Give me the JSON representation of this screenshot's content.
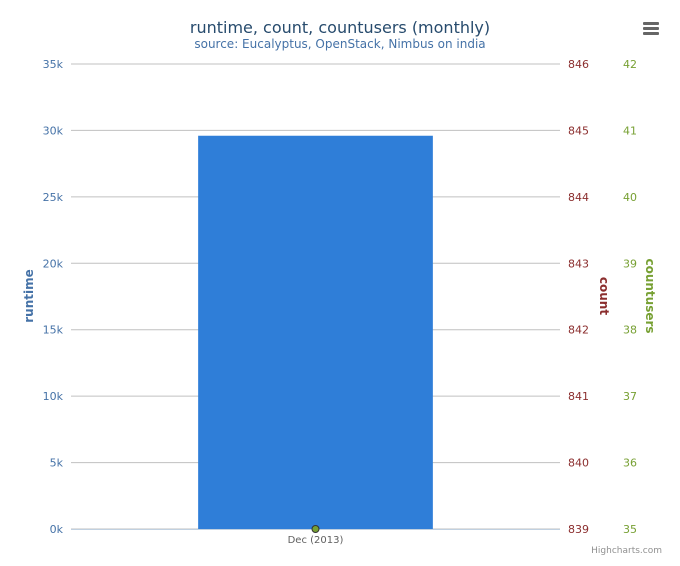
{
  "colors": {
    "runtime": "#2f7ed8",
    "count": "#8b2e2e",
    "countusers": "#77a033",
    "axis_runtime": "#4572a7",
    "grid": "#c0c0c0",
    "title": "#274b6d"
  },
  "menu": {
    "icon": "hamburger-menu-icon"
  },
  "credits": "Highcharts.com",
  "chart_data": {
    "type": "bar",
    "title": "runtime, count, countusers (monthly)",
    "subtitle": "source: Eucalyptus, OpenStack, Nimbus on india",
    "categories": [
      "Dec (2013)"
    ],
    "grid": true,
    "legend": "none",
    "axes": {
      "runtime": {
        "label": "runtime",
        "side": "left",
        "range": [
          0,
          35000
        ],
        "ticks": [
          "0k",
          "5k",
          "10k",
          "15k",
          "20k",
          "25k",
          "30k",
          "35k"
        ]
      },
      "count": {
        "label": "count",
        "side": "right",
        "range": [
          839,
          846
        ],
        "ticks": [
          "839",
          "840",
          "841",
          "842",
          "843",
          "844",
          "845",
          "846"
        ]
      },
      "countusers": {
        "label": "countusers",
        "side": "right",
        "range": [
          35,
          42
        ],
        "ticks": [
          "35",
          "36",
          "37",
          "38",
          "39",
          "40",
          "41",
          "42"
        ]
      }
    },
    "series": [
      {
        "name": "runtime",
        "type": "bar",
        "axis": "runtime",
        "values": [
          29600
        ]
      },
      {
        "name": "countusers",
        "type": "point",
        "axis": "countusers",
        "values": [
          35
        ]
      }
    ]
  }
}
